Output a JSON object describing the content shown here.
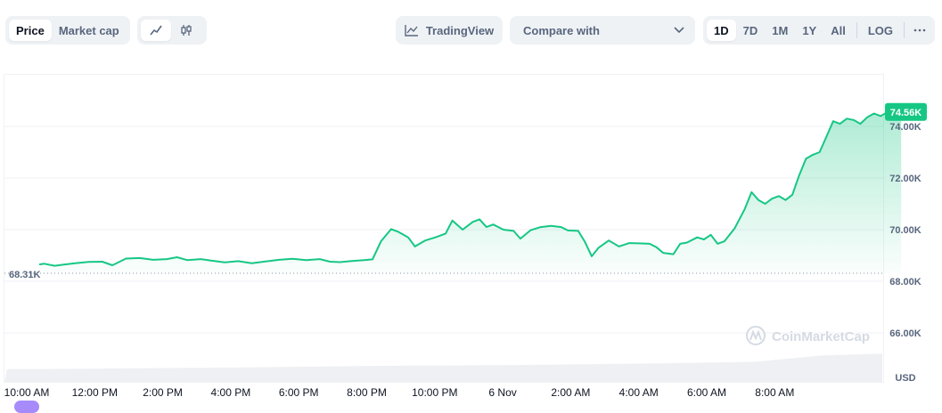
{
  "toolbar": {
    "type_tabs": [
      {
        "label": "Price",
        "active": true
      },
      {
        "label": "Market cap",
        "active": false
      }
    ],
    "chart_modes": [
      {
        "icon": "line-chart-icon",
        "active": true
      },
      {
        "icon": "candlestick-icon",
        "active": false
      }
    ],
    "tradingview_label": "TradingView",
    "compare_label": "Compare with",
    "ranges": [
      {
        "label": "1D",
        "active": true
      },
      {
        "label": "7D"
      },
      {
        "label": "1M"
      },
      {
        "label": "1Y"
      },
      {
        "label": "All"
      }
    ],
    "log_label": "LOG",
    "more_icon": "more-horizontal-icon"
  },
  "watermark": "CoinMarketCap",
  "colors": {
    "line": "#16c784",
    "badge": "#16c784",
    "fill_top": "#16c784"
  },
  "chart_data": {
    "type": "area",
    "currency_label": "USD",
    "current_price_label": "74.56K",
    "open_price_label": "68.31K",
    "open_price": 68310,
    "current_price": 74560,
    "y_ticks": [
      {
        "value": 66000,
        "label": "66.00K"
      },
      {
        "value": 68000,
        "label": "68.00K"
      },
      {
        "value": 70000,
        "label": "70.00K"
      },
      {
        "value": 72000,
        "label": "72.00K"
      },
      {
        "value": 74000,
        "label": "74.00K"
      }
    ],
    "x_ticks": [
      {
        "t": 0,
        "label": "10:00 AM"
      },
      {
        "t": 2,
        "label": "12:00 PM"
      },
      {
        "t": 4,
        "label": "2:00 PM"
      },
      {
        "t": 6,
        "label": "4:00 PM"
      },
      {
        "t": 8,
        "label": "6:00 PM"
      },
      {
        "t": 10,
        "label": "8:00 PM"
      },
      {
        "t": 12,
        "label": "10:00 PM"
      },
      {
        "t": 14,
        "label": "6 Nov"
      },
      {
        "t": 16,
        "label": "2:00 AM"
      },
      {
        "t": 18,
        "label": "4:00 AM"
      },
      {
        "t": 20,
        "label": "6:00 AM"
      },
      {
        "t": 22,
        "label": "8:00 AM"
      }
    ],
    "series": [
      {
        "points": [
          [
            -0.05,
            68650
          ],
          [
            0.1,
            68680
          ],
          [
            0.4,
            68600
          ],
          [
            0.7,
            68650
          ],
          [
            1.0,
            68700
          ],
          [
            1.4,
            68750
          ],
          [
            1.8,
            68760
          ],
          [
            2.1,
            68620
          ],
          [
            2.5,
            68880
          ],
          [
            2.9,
            68900
          ],
          [
            3.3,
            68830
          ],
          [
            3.7,
            68860
          ],
          [
            4.0,
            68930
          ],
          [
            4.3,
            68820
          ],
          [
            4.7,
            68860
          ],
          [
            5.0,
            68800
          ],
          [
            5.4,
            68730
          ],
          [
            5.8,
            68780
          ],
          [
            6.2,
            68700
          ],
          [
            6.6,
            68770
          ],
          [
            7.0,
            68830
          ],
          [
            7.4,
            68870
          ],
          [
            7.8,
            68820
          ],
          [
            8.2,
            68860
          ],
          [
            8.5,
            68760
          ],
          [
            8.8,
            68740
          ],
          [
            9.1,
            68780
          ],
          [
            9.5,
            68820
          ],
          [
            9.75,
            68850
          ],
          [
            10.0,
            69550
          ],
          [
            10.3,
            70020
          ],
          [
            10.5,
            69920
          ],
          [
            10.8,
            69700
          ],
          [
            11.0,
            69350
          ],
          [
            11.3,
            69580
          ],
          [
            11.6,
            69700
          ],
          [
            11.9,
            69850
          ],
          [
            12.1,
            70350
          ],
          [
            12.4,
            70000
          ],
          [
            12.7,
            70300
          ],
          [
            12.9,
            70400
          ],
          [
            13.1,
            70100
          ],
          [
            13.3,
            70200
          ],
          [
            13.6,
            70000
          ],
          [
            13.9,
            69950
          ],
          [
            14.1,
            69650
          ],
          [
            14.4,
            69980
          ],
          [
            14.7,
            70100
          ],
          [
            15.0,
            70150
          ],
          [
            15.3,
            70100
          ],
          [
            15.5,
            69970
          ],
          [
            15.8,
            69950
          ],
          [
            16.0,
            69520
          ],
          [
            16.2,
            68970
          ],
          [
            16.4,
            69300
          ],
          [
            16.7,
            69580
          ],
          [
            17.0,
            69350
          ],
          [
            17.3,
            69480
          ],
          [
            17.6,
            69470
          ],
          [
            17.9,
            69450
          ],
          [
            18.1,
            69320
          ],
          [
            18.3,
            69100
          ],
          [
            18.6,
            69050
          ],
          [
            18.8,
            69450
          ],
          [
            19.0,
            69500
          ],
          [
            19.3,
            69700
          ],
          [
            19.5,
            69620
          ],
          [
            19.7,
            69800
          ],
          [
            19.9,
            69450
          ],
          [
            20.1,
            69550
          ],
          [
            20.4,
            70050
          ],
          [
            20.7,
            70800
          ],
          [
            20.9,
            71450
          ],
          [
            21.1,
            71150
          ],
          [
            21.3,
            71000
          ],
          [
            21.5,
            71200
          ],
          [
            21.7,
            71300
          ],
          [
            21.9,
            71150
          ],
          [
            22.1,
            71350
          ],
          [
            22.3,
            72100
          ],
          [
            22.5,
            72750
          ],
          [
            22.7,
            72900
          ],
          [
            22.9,
            73000
          ],
          [
            23.1,
            73600
          ],
          [
            23.3,
            74200
          ],
          [
            23.5,
            74100
          ],
          [
            23.7,
            74300
          ],
          [
            23.9,
            74250
          ],
          [
            24.1,
            74100
          ],
          [
            24.3,
            74350
          ],
          [
            24.5,
            74500
          ],
          [
            24.7,
            74400
          ],
          [
            24.9,
            74560
          ],
          [
            25.1,
            74700
          ],
          [
            25.3,
            74560
          ]
        ]
      }
    ],
    "volume": {
      "min": 0,
      "max": 1,
      "points": [
        [
          0,
          0.16
        ],
        [
          6,
          0.18
        ],
        [
          10,
          0.2
        ],
        [
          14,
          0.21
        ],
        [
          18,
          0.23
        ],
        [
          21,
          0.25
        ],
        [
          23,
          0.33
        ],
        [
          25.4,
          0.36
        ]
      ]
    }
  }
}
